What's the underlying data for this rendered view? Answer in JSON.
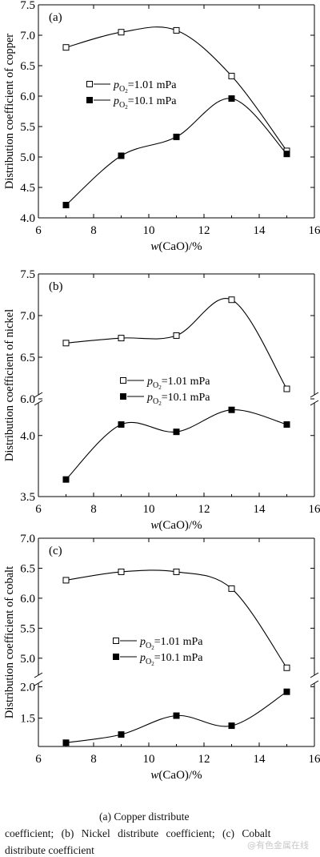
{
  "chart_data": [
    {
      "type": "line",
      "panel_label": "(a)",
      "ylabel": "Distribution coefficient of copper",
      "xlabel_italic": "w",
      "xlabel_rest": "(CaO)/%",
      "xlim": [
        6,
        16
      ],
      "xticks": [
        "6",
        "8",
        "10",
        "12",
        "14",
        "16"
      ],
      "x": [
        7,
        9,
        11,
        13,
        15
      ],
      "segments": [
        {
          "ylim": [
            4.0,
            7.5
          ],
          "yticks": [
            "4.0",
            "4.5",
            "5.0",
            "5.5",
            "6.0",
            "6.5",
            "7.0",
            "7.5"
          ]
        }
      ],
      "series": [
        {
          "values": [
            6.8,
            7.05,
            7.08,
            6.33,
            5.1
          ],
          "marker": "open-square",
          "legend_label": "1.01 mPa"
        },
        {
          "values": [
            4.21,
            5.02,
            5.33,
            5.96,
            5.05
          ],
          "marker": "filled-square",
          "legend_label": "10.1 mPa"
        }
      ],
      "legend": {
        "var_main": "p",
        "var_sub": "O",
        "var_sub2": "2",
        "placement": "center"
      }
    },
    {
      "type": "line",
      "panel_label": "(b)",
      "ylabel": "Distribution coefficient of nickel",
      "xlabel_italic": "w",
      "xlabel_rest": "(CaO)/%",
      "xlim": [
        6,
        16
      ],
      "xticks": [
        "6",
        "8",
        "10",
        "12",
        "14",
        "16"
      ],
      "x": [
        7,
        9,
        11,
        13,
        15
      ],
      "segments": [
        {
          "ylim": [
            6.0,
            7.5
          ],
          "yticks": [
            "6.0",
            "6.5",
            "7.0",
            "7.5"
          ]
        },
        {
          "ylim": [
            3.5,
            4.3
          ],
          "yticks": [
            "3.5",
            "4.0"
          ]
        }
      ],
      "series": [
        {
          "values": [
            6.67,
            6.73,
            6.76,
            7.19,
            6.12
          ],
          "marker": "open-square",
          "legend_label": "1.01 mPa"
        },
        {
          "values": [
            3.64,
            4.09,
            4.03,
            4.21,
            4.09
          ],
          "marker": "filled-square",
          "legend_label": "10.1 mPa"
        }
      ],
      "legend": {
        "var_main": "p",
        "var_sub": "O",
        "var_sub2": "2",
        "placement": "center"
      }
    },
    {
      "type": "line",
      "panel_label": "(c)",
      "ylabel": "Distribution coefficient of cobalt",
      "xlabel_italic": "w",
      "xlabel_rest": "(CaO)/%",
      "xlim": [
        6,
        16
      ],
      "xticks": [
        "6",
        "8",
        "10",
        "12",
        "14",
        "16"
      ],
      "x": [
        7,
        9,
        11,
        13,
        15
      ],
      "segments": [
        {
          "ylim": [
            4.65,
            7.0
          ],
          "yticks": [
            "5.0",
            "5.5",
            "6.0",
            "6.5",
            "7.0"
          ]
        },
        {
          "ylim": [
            1.05,
            2.12
          ],
          "yticks": [
            "1.5",
            "2.0"
          ]
        }
      ],
      "series": [
        {
          "values": [
            6.3,
            6.44,
            6.44,
            6.16,
            4.84
          ],
          "marker": "open-square",
          "legend_label": "1.01 mPa"
        },
        {
          "values": [
            1.11,
            1.24,
            1.54,
            1.38,
            1.92
          ],
          "marker": "filled-square",
          "legend_label": "10.1 mPa"
        }
      ],
      "legend": {
        "var_main": "p",
        "var_sub": "O",
        "var_sub2": "2",
        "placement": "center"
      }
    }
  ],
  "caption": {
    "line1": "(a)  Copper  distribute",
    "line2": "coefficient; (b) Nickel distribute coefficient; (c) Cobalt",
    "line3": "distribute coefficient"
  },
  "watermark": "@有色金属在线"
}
